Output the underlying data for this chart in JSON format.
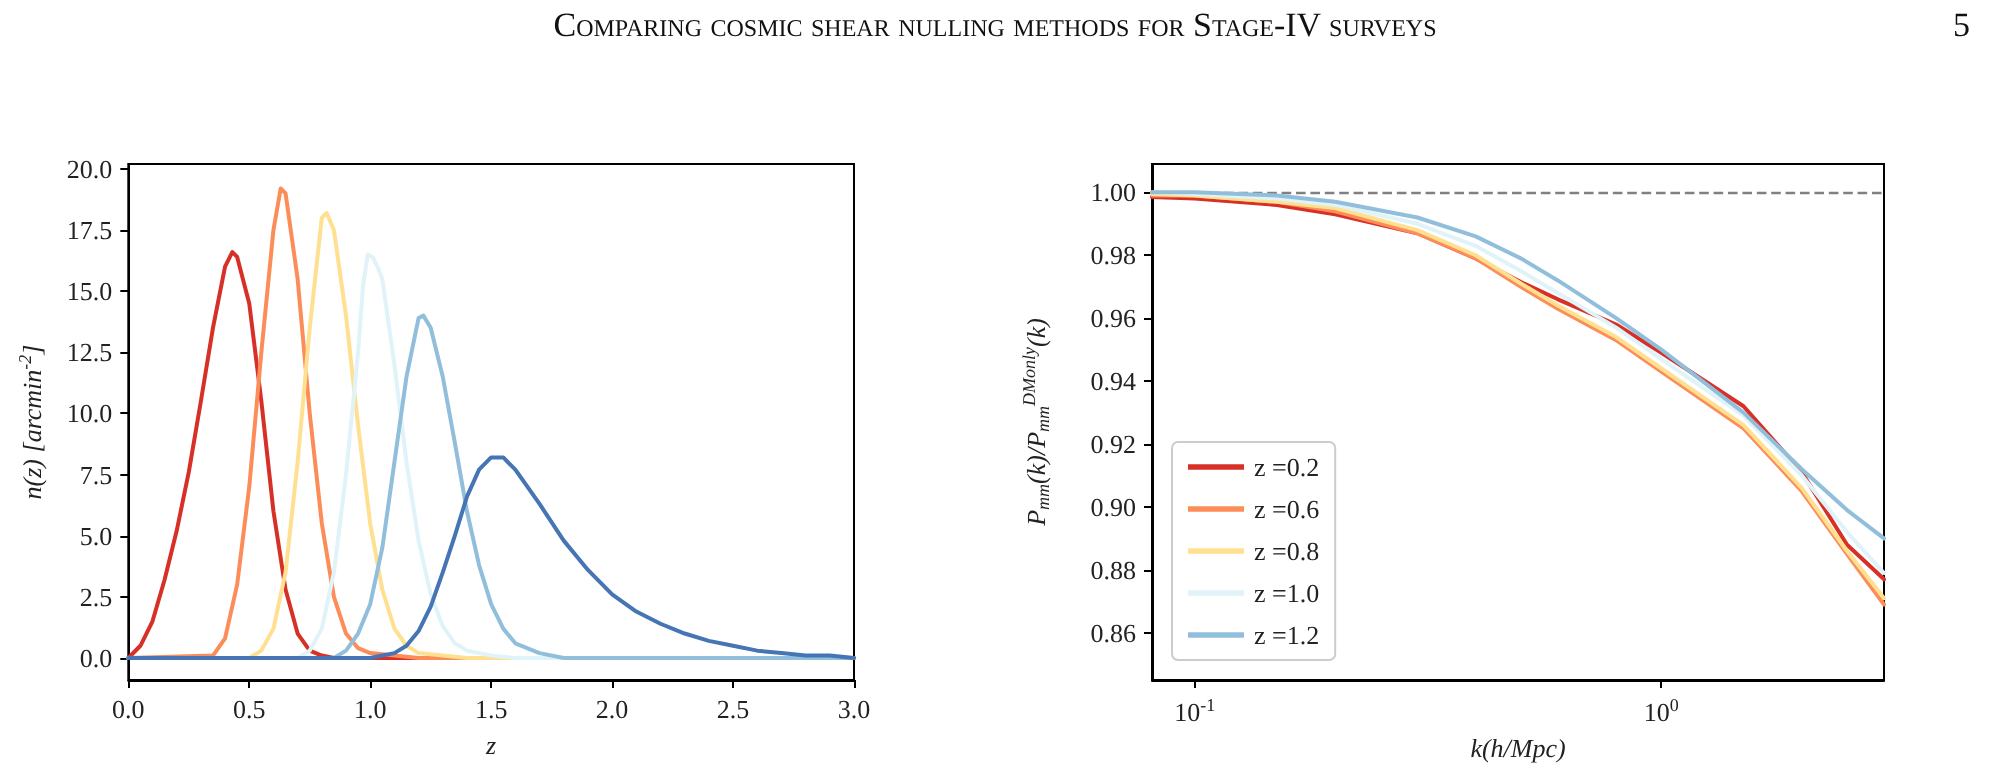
{
  "chart_data": [
    {
      "type": "line",
      "annotations": [
        "Comparing cosmic shear nulling methods for Stage-IV surveys",
        "5"
      ],
      "xlabel": "z",
      "ylabel": "n(z) [arcmin$^{-2}$]",
      "xlim": [
        0,
        3
      ],
      "xticks": [
        {
          "value": 0,
          "label": "0.0"
        },
        {
          "value": 0.5,
          "label": "0.5"
        },
        {
          "value": 1,
          "label": "1.0"
        },
        {
          "value": 1.5,
          "label": "1.5"
        },
        {
          "value": 2,
          "label": "2.0"
        },
        {
          "value": 2.5,
          "label": "2.5"
        },
        {
          "value": 3,
          "label": "3.0"
        }
      ],
      "ylim": [
        -0.9,
        20.2
      ],
      "yticks": [
        {
          "value": 0,
          "label": "0.0"
        },
        {
          "value": 2.5,
          "label": "2.5"
        },
        {
          "value": 5,
          "label": "5.0"
        },
        {
          "value": 7.5,
          "label": "7.5"
        },
        {
          "value": 10,
          "label": "10.0"
        },
        {
          "value": 12.5,
          "label": "12.5"
        },
        {
          "value": 15,
          "label": "15.0"
        },
        {
          "value": 17.5,
          "label": "17.5"
        },
        {
          "value": 20,
          "label": "20.0"
        }
      ],
      "grid": false,
      "legend": false,
      "series": [
        {
          "color": "#d73027",
          "x": [
            0,
            0.05,
            0.1,
            0.15,
            0.2,
            0.25,
            0.3,
            0.35,
            0.4,
            0.43,
            0.45,
            0.5,
            0.55,
            0.6,
            0.65,
            0.7,
            0.75,
            0.8,
            0.85,
            3
          ],
          "values": [
            0,
            0.5,
            1.5,
            3.2,
            5.2,
            7.6,
            10.5,
            13.5,
            16.0,
            16.6,
            16.4,
            14.5,
            10.5,
            6.0,
            2.8,
            1.0,
            0.3,
            0.1,
            0,
            0
          ]
        },
        {
          "color": "#fc8d59",
          "x": [
            0,
            0.35,
            0.4,
            0.45,
            0.5,
            0.55,
            0.6,
            0.63,
            0.65,
            0.7,
            0.75,
            0.8,
            0.85,
            0.9,
            0.95,
            1.0,
            1.1,
            1.2,
            3
          ],
          "values": [
            0,
            0.1,
            0.8,
            3,
            7,
            12.5,
            17.5,
            19.2,
            19,
            15.5,
            10,
            5.5,
            2.5,
            1.0,
            0.4,
            0.2,
            0.1,
            0,
            0
          ]
        },
        {
          "color": "#fee090",
          "x": [
            0,
            0.5,
            0.55,
            0.6,
            0.65,
            0.7,
            0.75,
            0.8,
            0.82,
            0.85,
            0.9,
            0.95,
            1.0,
            1.05,
            1.1,
            1.15,
            1.2,
            1.3,
            1.4,
            3
          ],
          "values": [
            0,
            0,
            0.3,
            1.2,
            3.5,
            8,
            13.5,
            18,
            18.2,
            17.5,
            14,
            9.5,
            5.5,
            2.8,
            1.2,
            0.5,
            0.2,
            0.1,
            0,
            0
          ]
        },
        {
          "color": "#e0f3f8",
          "x": [
            0,
            0.7,
            0.75,
            0.8,
            0.85,
            0.9,
            0.95,
            0.97,
            0.99,
            1.01,
            1.03,
            1.05,
            1.1,
            1.15,
            1.2,
            1.25,
            1.3,
            1.35,
            1.4,
            1.5,
            1.6,
            3
          ],
          "values": [
            0,
            0,
            0.3,
            1.2,
            3.5,
            7.5,
            12.5,
            15.2,
            16.5,
            16.4,
            16.0,
            15.5,
            12,
            8,
            4.8,
            2.6,
            1.3,
            0.6,
            0.3,
            0.1,
            0,
            0
          ]
        },
        {
          "color": "#91bfdb",
          "x": [
            0,
            0.85,
            0.9,
            0.95,
            1.0,
            1.05,
            1.1,
            1.15,
            1.2,
            1.22,
            1.25,
            1.3,
            1.35,
            1.4,
            1.45,
            1.5,
            1.55,
            1.6,
            1.7,
            1.8,
            3
          ],
          "values": [
            0,
            0,
            0.3,
            1,
            2.2,
            4.5,
            8,
            11.5,
            13.9,
            14.0,
            13.5,
            11.5,
            8.8,
            6,
            3.8,
            2.2,
            1.2,
            0.6,
            0.2,
            0,
            0
          ]
        },
        {
          "color": "#4575b4",
          "x": [
            0,
            1.0,
            1.05,
            1.1,
            1.15,
            1.2,
            1.25,
            1.3,
            1.35,
            1.4,
            1.45,
            1.5,
            1.55,
            1.6,
            1.7,
            1.8,
            1.9,
            2.0,
            2.1,
            2.2,
            2.3,
            2.4,
            2.5,
            2.6,
            2.7,
            2.8,
            2.9,
            3.0
          ],
          "values": [
            0,
            0,
            0.1,
            0.2,
            0.5,
            1.1,
            2.1,
            3.5,
            5,
            6.6,
            7.7,
            8.2,
            8.2,
            7.7,
            6.3,
            4.8,
            3.6,
            2.6,
            1.9,
            1.4,
            1.0,
            0.7,
            0.5,
            0.3,
            0.2,
            0.1,
            0.1,
            0
          ]
        }
      ]
    },
    {
      "type": "line",
      "xlabel": "k(h/Mpc)",
      "ylabel": "P$_{mm}$(k)/P$_{mm}$$^{DMonly}$(k)",
      "log": "x",
      "x": [
        0.081,
        0.1,
        0.15,
        0.2,
        0.3,
        0.4,
        0.5,
        0.6,
        0.8,
        1.0,
        1.5,
        2.0,
        2.5,
        3.0
      ],
      "xlim": [
        0.081,
        3.0
      ],
      "xticks": [
        {
          "value": 0.1,
          "label": "10$^{-1}$"
        },
        {
          "value": 1,
          "label": "10$^{0}$"
        }
      ],
      "ylim": [
        0.845,
        1.009
      ],
      "yticks": [
        {
          "value": 0.86,
          "label": "0.86"
        },
        {
          "value": 0.88,
          "label": "0.88"
        },
        {
          "value": 0.9,
          "label": "0.90"
        },
        {
          "value": 0.92,
          "label": "0.92"
        },
        {
          "value": 0.94,
          "label": "0.94"
        },
        {
          "value": 0.96,
          "label": "0.96"
        },
        {
          "value": 0.98,
          "label": "0.98"
        },
        {
          "value": 1,
          "label": "1.00"
        }
      ],
      "grid": false,
      "legend": "bottom left",
      "ref_lines": [
        {
          "axis": "y",
          "value": 1.0,
          "color": "#808080",
          "line_style": "dashed"
        }
      ],
      "series": [
        {
          "name": "z =0.2",
          "color": "#d73027",
          "values": [
            0.9985,
            0.998,
            0.996,
            0.993,
            0.987,
            0.979,
            0.9715,
            0.966,
            0.958,
            0.949,
            0.932,
            0.911,
            0.888,
            0.877
          ]
        },
        {
          "name": "z =0.6",
          "color": "#fc8d59",
          "values": [
            0.999,
            0.999,
            0.997,
            0.994,
            0.987,
            0.979,
            0.97,
            0.963,
            0.953,
            0.943,
            0.925,
            0.905,
            0.885,
            0.869
          ]
        },
        {
          "name": "z =0.8",
          "color": "#fee090",
          "values": [
            0.9995,
            0.999,
            0.997,
            0.995,
            0.988,
            0.98,
            0.971,
            0.964,
            0.954,
            0.944,
            0.926,
            0.906,
            0.886,
            0.871
          ]
        },
        {
          "name": "z =1.0",
          "color": "#e0f3f8",
          "values": [
            1.0,
            0.9995,
            0.998,
            0.996,
            0.99,
            0.983,
            0.975,
            0.968,
            0.957,
            0.947,
            0.929,
            0.91,
            0.892,
            0.879
          ]
        },
        {
          "name": "z =1.2",
          "color": "#91bfdb",
          "values": [
            1.0,
            1.0,
            0.999,
            0.997,
            0.992,
            0.986,
            0.979,
            0.972,
            0.96,
            0.95,
            0.93,
            0.912,
            0.899,
            0.89
          ]
        }
      ]
    }
  ]
}
